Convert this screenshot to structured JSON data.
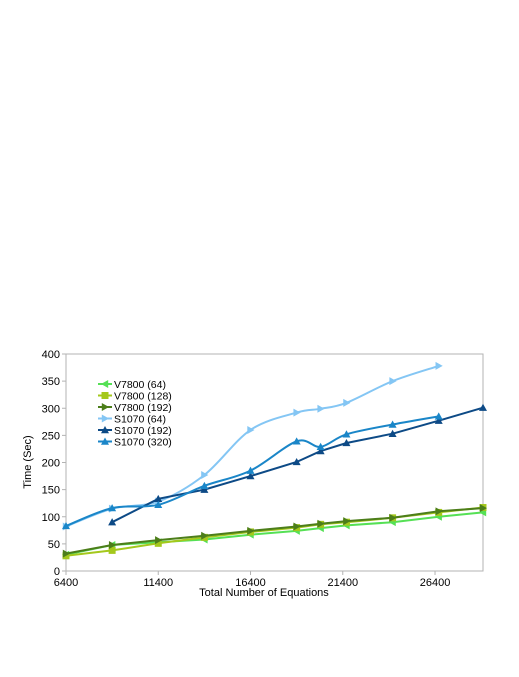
{
  "chart_data": {
    "type": "line",
    "title": "",
    "xlabel": "Total Number of Equations",
    "ylabel": "Time (Sec)",
    "xlim": [
      6400,
      29000
    ],
    "ylim": [
      0,
      400
    ],
    "xticks": [
      6400,
      11400,
      16400,
      21400,
      26400
    ],
    "yticks": [
      0,
      50,
      100,
      150,
      200,
      250,
      300,
      350,
      400
    ],
    "grid": false,
    "legend_position": "top-left",
    "series": [
      {
        "name": "V7800 (64)",
        "color": "#55e055",
        "marker": "triangle-left",
        "curve": "straight",
        "x": [
          6400,
          8900,
          11400,
          13900,
          16400,
          18900,
          20200,
          21600,
          24100,
          26600,
          29000
        ],
        "y": [
          30,
          48,
          53,
          58,
          67,
          74,
          79,
          84,
          90,
          100,
          108
        ]
      },
      {
        "name": "V7800 (128)",
        "color": "#a4c81c",
        "marker": "square",
        "curve": "straight",
        "x": [
          6400,
          8900,
          11400,
          13900,
          16400,
          18900,
          20200,
          21600,
          24100,
          26600,
          29000
        ],
        "y": [
          28,
          38,
          51,
          62,
          72,
          80,
          86,
          90,
          98,
          108,
          117
        ]
      },
      {
        "name": "V7800 (192)",
        "color": "#4c7e1a",
        "marker": "triangle-right",
        "curve": "straight",
        "x": [
          6400,
          8900,
          11400,
          13900,
          16400,
          18900,
          20200,
          21600,
          24100,
          26600,
          29000
        ],
        "y": [
          32,
          48,
          57,
          65,
          74,
          82,
          87,
          92,
          98,
          110,
          116
        ]
      },
      {
        "name": "S1070 (64)",
        "color": "#84c6f4",
        "marker": "triangle-right",
        "curve": "smooth",
        "x": [
          6400,
          8900,
          11400,
          13900,
          16400,
          18900,
          20200,
          21600,
          24100,
          26600
        ],
        "y": [
          82,
          115,
          128,
          177,
          260,
          292,
          299,
          310,
          350,
          378
        ]
      },
      {
        "name": "S1070 (192)",
        "color": "#0d4a86",
        "marker": "triangle-up",
        "curve": "straight",
        "x": [
          8900,
          11400,
          13900,
          16400,
          18900,
          20200,
          21600,
          24100,
          26600,
          29000
        ],
        "y": [
          90,
          133,
          150,
          175,
          201,
          221,
          236,
          253,
          277,
          301
        ]
      },
      {
        "name": "S1070 (320)",
        "color": "#1a86c8",
        "marker": "triangle-up",
        "curve": "smooth",
        "x": [
          6400,
          8900,
          11400,
          13900,
          16400,
          18900,
          20200,
          21600,
          24100,
          26600
        ],
        "y": [
          83,
          116,
          122,
          157,
          185,
          239,
          229,
          252,
          270,
          285
        ]
      }
    ]
  }
}
